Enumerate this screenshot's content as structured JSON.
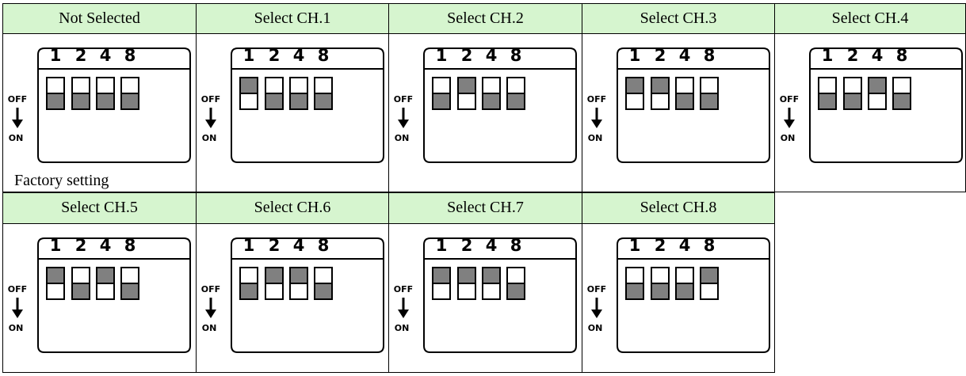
{
  "cells": [
    {
      "title": "Not Selected",
      "note": "Factory setting"
    },
    {
      "title": "Select CH.1"
    },
    {
      "title": "Select CH.2"
    },
    {
      "title": "Select CH.3"
    },
    {
      "title": "Select CH.4"
    },
    {
      "title": "Select CH.5"
    },
    {
      "title": "Select CH.6"
    },
    {
      "title": "Select CH.7"
    },
    {
      "title": "Select CH.8"
    }
  ],
  "dip": {
    "positions": [
      "1",
      "2",
      "4",
      "8"
    ],
    "off": "OFF",
    "on": "ON"
  }
}
